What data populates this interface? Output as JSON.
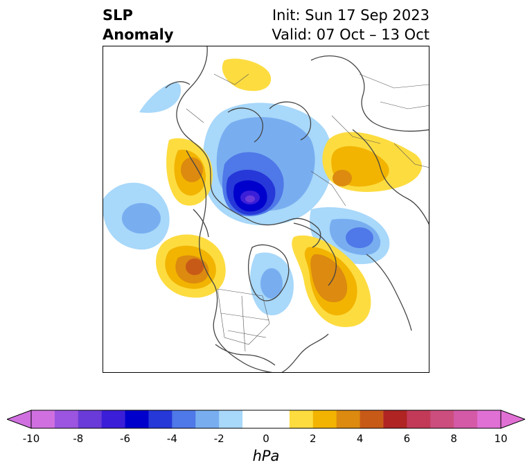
{
  "header": {
    "title_line1": "SLP",
    "title_line2": "Anomaly",
    "init_label": "Init: Sun 17 Sep 2023",
    "valid_label": "Valid: 07 Oct – 13 Oct"
  },
  "map": {
    "projection": "north-polar-stereographic",
    "field": "sea level pressure anomaly",
    "anomaly_centers": [
      {
        "name": "arctic-low",
        "sign": "negative",
        "peak_hpa": -7
      },
      {
        "name": "north-pacific-high",
        "sign": "positive",
        "peak_hpa": 5
      },
      {
        "name": "gulf-of-alaska-low",
        "sign": "negative",
        "peak_hpa": -3
      },
      {
        "name": "northeast-pacific-high",
        "sign": "positive",
        "peak_hpa": 5
      },
      {
        "name": "northwest-atlantic-high",
        "sign": "positive",
        "peak_hpa": 4
      },
      {
        "name": "siberia-high",
        "sign": "positive",
        "peak_hpa": 3
      },
      {
        "name": "north-atlantic-low",
        "sign": "negative",
        "peak_hpa": -5
      },
      {
        "name": "hudson-bay-low",
        "sign": "negative",
        "peak_hpa": -2
      },
      {
        "name": "africa-high",
        "sign": "positive",
        "peak_hpa": 1
      }
    ]
  },
  "colorbar": {
    "unit": "hPa",
    "min": -10,
    "max": 10,
    "step": 1,
    "extend": "both",
    "tick_labels": [
      "-10",
      "-8",
      "-6",
      "-4",
      "-2",
      "0",
      "2",
      "4",
      "6",
      "8",
      "10"
    ],
    "colors": [
      "#d070e0",
      "#9b55e0",
      "#6a3bd8",
      "#3b1fd8",
      "#0000cc",
      "#2638d8",
      "#4f78e8",
      "#78aef0",
      "#a8d8fa",
      "#ffffff",
      "#ffffff",
      "#fddc40",
      "#f2b400",
      "#dc8a10",
      "#c85a18",
      "#b02424",
      "#c23a58",
      "#cc4e7e",
      "#d45aa8",
      "#e070d4"
    ]
  }
}
